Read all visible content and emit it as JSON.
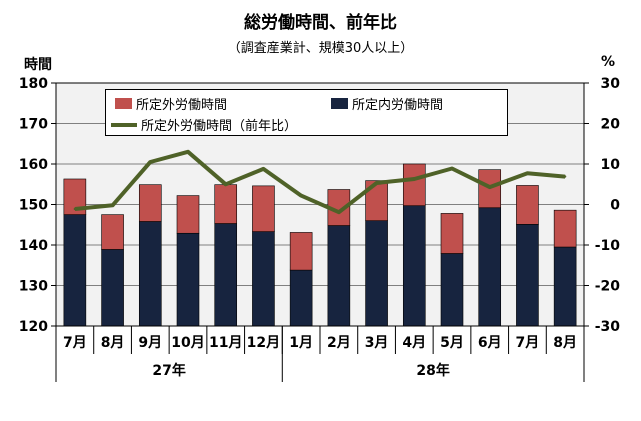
{
  "title": "総労働時間、前年比",
  "subtitle": "（調査産業計、規模30人以上）",
  "left_unit": "時間",
  "right_unit": "%",
  "colors": {
    "overtime": "#c0504d",
    "scheduled": "#17243f",
    "yoy": "#4f6228",
    "plot_bg": "#f2f2f2"
  },
  "legend": {
    "overtime": "所定外労働時間",
    "scheduled": "所定内労働時間",
    "yoy": "所定外労働時間（前年比）"
  },
  "chart_data": {
    "type": "bar",
    "stacked": true,
    "categories": [
      "7月",
      "8月",
      "9月",
      "10月",
      "11月",
      "12月",
      "1月",
      "2月",
      "3月",
      "4月",
      "5月",
      "6月",
      "7月",
      "8月"
    ],
    "year_groups": [
      {
        "label": "27年",
        "start": 0,
        "end": 5
      },
      {
        "label": "28年",
        "start": 6,
        "end": 13
      }
    ],
    "series": [
      {
        "name": "所定内労働時間",
        "values": [
          147.5,
          138.9,
          145.8,
          142.9,
          145.3,
          143.3,
          133.8,
          144.8,
          146.0,
          149.7,
          137.9,
          149.2,
          145.1,
          139.5
        ]
      },
      {
        "name": "所定外労働時間",
        "values": [
          8.8,
          8.6,
          9.1,
          9.3,
          9.6,
          11.3,
          9.3,
          8.9,
          9.9,
          10.3,
          9.9,
          9.4,
          9.6,
          9.1
        ]
      },
      {
        "name": "所定外労働時間（前年比）",
        "axis": "right",
        "values": [
          -1.1,
          -0.2,
          10.5,
          13.0,
          5.0,
          8.8,
          2.2,
          -1.9,
          5.3,
          6.3,
          8.9,
          4.3,
          7.7,
          6.9
        ]
      }
    ],
    "ylim_left": [
      120,
      180
    ],
    "yticks_left": [
      120,
      130,
      140,
      150,
      160,
      170,
      180
    ],
    "ylim_right": [
      -30,
      30
    ],
    "yticks_right": [
      -30,
      -20,
      -10,
      0,
      10,
      20,
      30
    ],
    "grid": true,
    "legend_position": "top"
  }
}
